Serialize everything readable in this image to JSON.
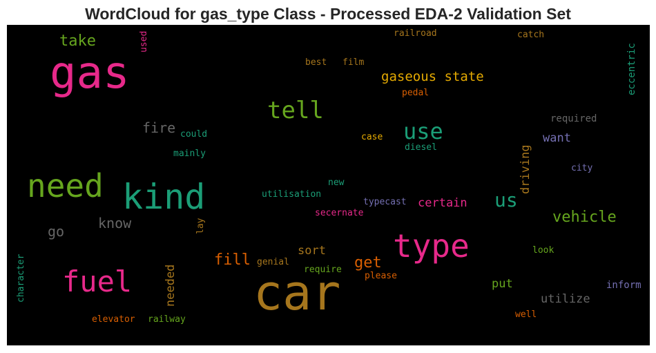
{
  "chart_data": {
    "type": "wordcloud",
    "title": "WordCloud for gas_type Class - Processed EDA-2 Validation Set",
    "background": "#000000",
    "words": [
      {
        "text": "car",
        "color": "#a6761d"
      },
      {
        "text": "gas",
        "color": "#e7298a"
      },
      {
        "text": "kind",
        "color": "#1b9e77"
      },
      {
        "text": "need",
        "color": "#66a61e"
      },
      {
        "text": "type",
        "color": "#e7298a"
      },
      {
        "text": "fuel",
        "color": "#e7298a"
      },
      {
        "text": "tell",
        "color": "#66a61e"
      },
      {
        "text": "use",
        "color": "#1b9e77"
      },
      {
        "text": "us",
        "color": "#1b9e77"
      },
      {
        "text": "vehicle",
        "color": "#66a61e"
      },
      {
        "text": "gaseous state",
        "color": "#e6ab02"
      },
      {
        "text": "take",
        "color": "#66a61e"
      },
      {
        "text": "fill",
        "color": "#d95f02"
      },
      {
        "text": "get",
        "color": "#d95f02"
      },
      {
        "text": "know",
        "color": "#666666"
      },
      {
        "text": "fire",
        "color": "#666666"
      },
      {
        "text": "go",
        "color": "#666666"
      },
      {
        "text": "certain",
        "color": "#e7298a"
      },
      {
        "text": "utilize",
        "color": "#666666"
      },
      {
        "text": "driving",
        "color": "#a6761d"
      },
      {
        "text": "needed",
        "color": "#a6761d"
      },
      {
        "text": "put",
        "color": "#66a61e"
      },
      {
        "text": "sort",
        "color": "#a6761d"
      },
      {
        "text": "want",
        "color": "#7570b3"
      },
      {
        "text": "required",
        "color": "#666666"
      },
      {
        "text": "inform",
        "color": "#7570b3"
      },
      {
        "text": "eccentric",
        "color": "#1b9e77"
      },
      {
        "text": "railroad",
        "color": "#a6761d"
      },
      {
        "text": "catch",
        "color": "#a6761d"
      },
      {
        "text": "best",
        "color": "#a6761d"
      },
      {
        "text": "film",
        "color": "#a6761d"
      },
      {
        "text": "pedal",
        "color": "#d95f02"
      },
      {
        "text": "case",
        "color": "#e6ab02"
      },
      {
        "text": "diesel",
        "color": "#1b9e77"
      },
      {
        "text": "could",
        "color": "#1b9e77"
      },
      {
        "text": "mainly",
        "color": "#1b9e77"
      },
      {
        "text": "used",
        "color": "#e7298a"
      },
      {
        "text": "city",
        "color": "#7570b3"
      },
      {
        "text": "new",
        "color": "#1b9e77"
      },
      {
        "text": "utilisation",
        "color": "#1b9e77"
      },
      {
        "text": "typecast",
        "color": "#7570b3"
      },
      {
        "text": "secernate",
        "color": "#e7298a"
      },
      {
        "text": "lay",
        "color": "#a6761d"
      },
      {
        "text": "look",
        "color": "#66a61e"
      },
      {
        "text": "genial",
        "color": "#a6761d"
      },
      {
        "text": "require",
        "color": "#66a61e"
      },
      {
        "text": "please",
        "color": "#d95f02"
      },
      {
        "text": "character",
        "color": "#1b9e77"
      },
      {
        "text": "elevator",
        "color": "#d95f02"
      },
      {
        "text": "railway",
        "color": "#66a61e"
      },
      {
        "text": "well",
        "color": "#d95f02"
      }
    ]
  }
}
